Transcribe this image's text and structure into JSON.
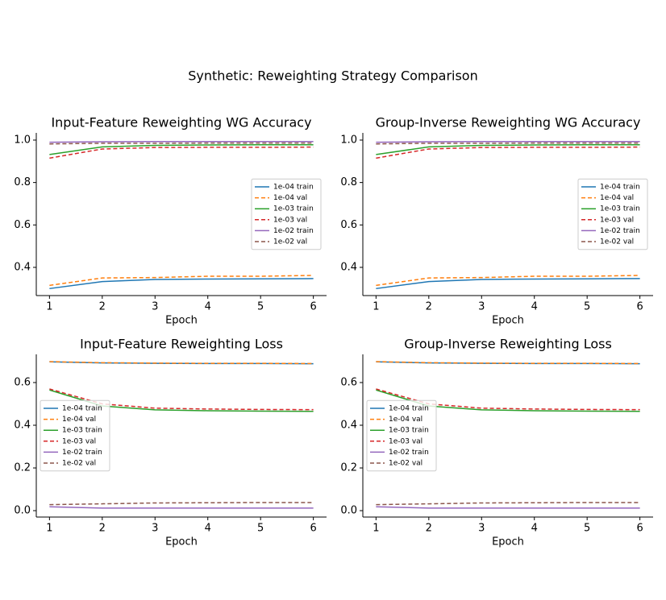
{
  "title": "Synthetic: Reweighting Strategy Comparison",
  "chart_data": [
    {
      "type": "line",
      "title": "Input-Feature Reweighting WG Accuracy",
      "xlabel": "Epoch",
      "x": [
        1,
        2,
        3,
        4,
        5,
        6
      ],
      "xlim": [
        0.75,
        6.25
      ],
      "xticks": [
        1,
        2,
        3,
        4,
        5,
        6
      ],
      "ylim": [
        0.267,
        1.034
      ],
      "yticks": [
        0.4,
        0.6,
        0.8,
        {
          "value": 1,
          "label": "1.0"
        }
      ],
      "legend": "center right",
      "series": [
        {
          "name": "1e-04 train",
          "color": "#1f77b4",
          "linestyle": "solid",
          "values": [
            0.3,
            0.333,
            0.343,
            0.345,
            0.346,
            0.347
          ]
        },
        {
          "name": "1e-04 val",
          "color": "#ff7f0e",
          "linestyle": "dashed",
          "values": [
            0.315,
            0.35,
            0.352,
            0.358,
            0.358,
            0.362
          ]
        },
        {
          "name": "1e-03 train",
          "color": "#2ca02c",
          "linestyle": "solid",
          "values": [
            0.932,
            0.968,
            0.975,
            0.977,
            0.978,
            0.978
          ]
        },
        {
          "name": "1e-03 val",
          "color": "#d62728",
          "linestyle": "dashed",
          "values": [
            0.915,
            0.958,
            0.965,
            0.966,
            0.966,
            0.967
          ]
        },
        {
          "name": "1e-02 train",
          "color": "#9467bd",
          "linestyle": "solid",
          "values": [
            0.99,
            0.992,
            0.993,
            0.993,
            0.993,
            0.993
          ]
        },
        {
          "name": "1e-02 val",
          "color": "#8c564b",
          "linestyle": "dashed",
          "values": [
            0.982,
            0.985,
            0.985,
            0.986,
            0.986,
            0.986
          ]
        }
      ]
    },
    {
      "type": "line",
      "title": "Group-Inverse Reweighting WG Accuracy",
      "xlabel": "Epoch",
      "x": [
        1,
        2,
        3,
        4,
        5,
        6
      ],
      "xlim": [
        0.75,
        6.25
      ],
      "xticks": [
        1,
        2,
        3,
        4,
        5,
        6
      ],
      "ylim": [
        0.267,
        1.034
      ],
      "yticks": [
        0.4,
        0.6,
        0.8,
        {
          "value": 1,
          "label": "1.0"
        }
      ],
      "legend": "center right",
      "series": [
        {
          "name": "1e-04 train",
          "color": "#1f77b4",
          "linestyle": "solid",
          "values": [
            0.3,
            0.333,
            0.343,
            0.345,
            0.346,
            0.347
          ]
        },
        {
          "name": "1e-04 val",
          "color": "#ff7f0e",
          "linestyle": "dashed",
          "values": [
            0.315,
            0.35,
            0.352,
            0.358,
            0.358,
            0.362
          ]
        },
        {
          "name": "1e-03 train",
          "color": "#2ca02c",
          "linestyle": "solid",
          "values": [
            0.932,
            0.968,
            0.975,
            0.977,
            0.978,
            0.978
          ]
        },
        {
          "name": "1e-03 val",
          "color": "#d62728",
          "linestyle": "dashed",
          "values": [
            0.915,
            0.958,
            0.965,
            0.966,
            0.966,
            0.967
          ]
        },
        {
          "name": "1e-02 train",
          "color": "#9467bd",
          "linestyle": "solid",
          "values": [
            0.99,
            0.992,
            0.993,
            0.993,
            0.993,
            0.993
          ]
        },
        {
          "name": "1e-02 val",
          "color": "#8c564b",
          "linestyle": "dashed",
          "values": [
            0.982,
            0.985,
            0.985,
            0.986,
            0.986,
            0.986
          ]
        }
      ]
    },
    {
      "type": "line",
      "title": "Input-Feature Reweighting Loss",
      "xlabel": "Epoch",
      "x": [
        1,
        2,
        3,
        4,
        5,
        6
      ],
      "xlim": [
        0.75,
        6.25
      ],
      "xticks": [
        1,
        2,
        3,
        4,
        5,
        6
      ],
      "ylim": [
        -0.03,
        0.732
      ],
      "yticks": [
        {
          "value": 0,
          "label": "0.0"
        },
        0.2,
        0.4,
        0.6
      ],
      "legend": "center left",
      "series": [
        {
          "name": "1e-04 train",
          "color": "#1f77b4",
          "linestyle": "solid",
          "values": [
            0.697,
            0.692,
            0.69,
            0.689,
            0.689,
            0.688
          ]
        },
        {
          "name": "1e-04 val",
          "color": "#ff7f0e",
          "linestyle": "dashed",
          "values": [
            0.698,
            0.693,
            0.691,
            0.69,
            0.69,
            0.689
          ]
        },
        {
          "name": "1e-03 train",
          "color": "#2ca02c",
          "linestyle": "solid",
          "values": [
            0.565,
            0.49,
            0.472,
            0.468,
            0.466,
            0.465
          ]
        },
        {
          "name": "1e-03 val",
          "color": "#d62728",
          "linestyle": "dashed",
          "values": [
            0.57,
            0.5,
            0.48,
            0.476,
            0.474,
            0.473
          ]
        },
        {
          "name": "1e-02 train",
          "color": "#9467bd",
          "linestyle": "solid",
          "values": [
            0.018,
            0.012,
            0.012,
            0.012,
            0.012,
            0.012
          ]
        },
        {
          "name": "1e-02 val",
          "color": "#8c564b",
          "linestyle": "dashed",
          "values": [
            0.028,
            0.032,
            0.036,
            0.037,
            0.038,
            0.038
          ]
        }
      ]
    },
    {
      "type": "line",
      "title": "Group-Inverse Reweighting Loss",
      "xlabel": "Epoch",
      "x": [
        1,
        2,
        3,
        4,
        5,
        6
      ],
      "xlim": [
        0.75,
        6.25
      ],
      "xticks": [
        1,
        2,
        3,
        4,
        5,
        6
      ],
      "ylim": [
        -0.03,
        0.732
      ],
      "yticks": [
        {
          "value": 0,
          "label": "0.0"
        },
        0.2,
        0.4,
        0.6
      ],
      "legend": "center left",
      "series": [
        {
          "name": "1e-04 train",
          "color": "#1f77b4",
          "linestyle": "solid",
          "values": [
            0.697,
            0.692,
            0.69,
            0.689,
            0.689,
            0.688
          ]
        },
        {
          "name": "1e-04 val",
          "color": "#ff7f0e",
          "linestyle": "dashed",
          "values": [
            0.698,
            0.693,
            0.691,
            0.69,
            0.69,
            0.689
          ]
        },
        {
          "name": "1e-03 train",
          "color": "#2ca02c",
          "linestyle": "solid",
          "values": [
            0.565,
            0.49,
            0.472,
            0.468,
            0.466,
            0.465
          ]
        },
        {
          "name": "1e-03 val",
          "color": "#d62728",
          "linestyle": "dashed",
          "values": [
            0.57,
            0.5,
            0.48,
            0.476,
            0.474,
            0.473
          ]
        },
        {
          "name": "1e-02 train",
          "color": "#9467bd",
          "linestyle": "solid",
          "values": [
            0.018,
            0.012,
            0.012,
            0.012,
            0.012,
            0.012
          ]
        },
        {
          "name": "1e-02 val",
          "color": "#8c564b",
          "linestyle": "dashed",
          "values": [
            0.028,
            0.032,
            0.036,
            0.037,
            0.038,
            0.038
          ]
        }
      ]
    }
  ]
}
